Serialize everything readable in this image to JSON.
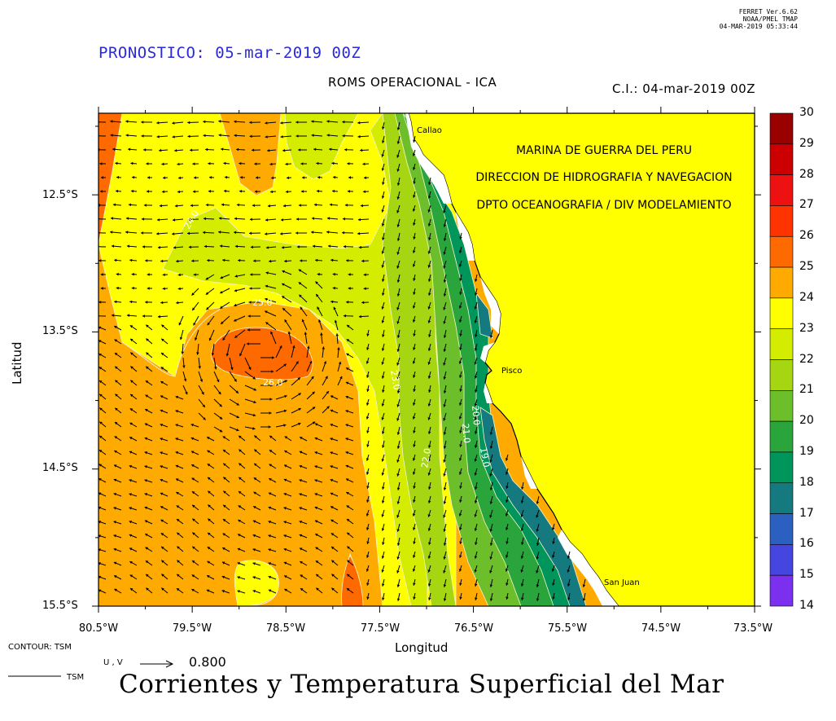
{
  "header": {
    "ferret_lines": [
      "FERRET  Ver.6.62",
      "NOAA/PMEL TMAP",
      "04-MAR-2019 05:33:44"
    ],
    "forecast": "PRONOSTICO: 05-mar-2019 00Z",
    "model": "ROMS OPERACIONAL - ICA",
    "initial_condition": "C.I.: 04-mar-2019 00Z"
  },
  "institution": {
    "line1": "MARINA DE GUERRA DEL PERU",
    "line2": "DIRECCION DE HIDROGRAFIA Y NAVEGACION",
    "line3": "DPTO OCEANOGRAFIA / DIV MODELAMIENTO"
  },
  "places": {
    "callao": "Callao",
    "pisco": "Pisco",
    "san_juan": "San Juan"
  },
  "axes": {
    "ylabel": "Latitud",
    "xlabel": "Longitud",
    "yticks": [
      "12.5°S",
      "13.5°S",
      "14.5°S",
      "15.5°S"
    ],
    "xticks": [
      "80.5°W",
      "79.5°W",
      "78.5°W",
      "77.5°W",
      "76.5°W",
      "75.5°W",
      "74.5°W",
      "73.5°W"
    ]
  },
  "footer": {
    "contour": "CONTOUR: TSM",
    "uv_label": "U , V",
    "uv_value": "0.800",
    "tsm": "TSM",
    "title": "Corrientes y Temperatura Superficial del Mar"
  },
  "colorbar": {
    "labels": [
      "30",
      "29",
      "28",
      "27",
      "26",
      "25",
      "24",
      "23",
      "22",
      "21",
      "20",
      "19",
      "18",
      "17",
      "16",
      "15",
      "14"
    ],
    "colors": [
      "#990000",
      "#cc0000",
      "#ee1111",
      "#ff3300",
      "#ff6a00",
      "#ffaa00",
      "#ffff00",
      "#d4ec00",
      "#a6d612",
      "#6cbf2a",
      "#2aa53c",
      "#00955a",
      "#157a80",
      "#2b5fc0",
      "#4545e0",
      "#7b30f0",
      "#cc11ee"
    ]
  },
  "contour_labels": [
    "26.0",
    "25.0",
    "24.0",
    "23.0",
    "22.0",
    "21.0",
    "20.0",
    "19.0"
  ],
  "colors": {
    "land": "#ffff00",
    "ocean_warm": "#ffaa00",
    "ocean_hot": "#ff6a00",
    "vector": "#000000"
  }
}
